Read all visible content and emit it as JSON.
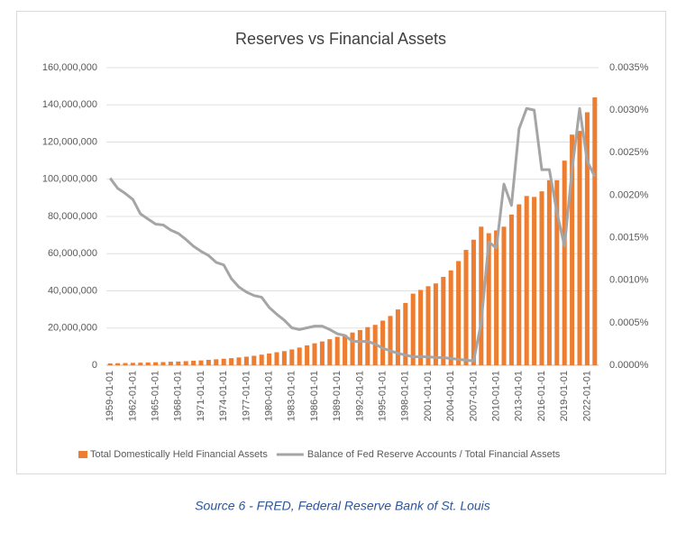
{
  "chart_data": {
    "type": "bar_line",
    "title": "Reserves vs Financial Assets",
    "caption": "Source 6 - FRED, Federal Reserve Bank of St. Louis",
    "categories": [
      "1959-01-01",
      null,
      null,
      "1962-01-01",
      null,
      null,
      "1965-01-01",
      null,
      null,
      "1968-01-01",
      null,
      null,
      "1971-01-01",
      null,
      null,
      "1974-01-01",
      null,
      null,
      "1977-01-01",
      null,
      null,
      "1980-01-01",
      null,
      null,
      "1983-01-01",
      null,
      null,
      "1986-01-01",
      null,
      null,
      "1989-01-01",
      null,
      null,
      "1992-01-01",
      null,
      null,
      "1995-01-01",
      null,
      null,
      "1998-01-01",
      null,
      null,
      "2001-01-01",
      null,
      null,
      "2004-01-01",
      null,
      null,
      "2007-01-01",
      null,
      null,
      "2010-01-01",
      null,
      null,
      "2013-01-01",
      null,
      null,
      "2016-01-01",
      null,
      null,
      "2019-01-01",
      null,
      null,
      "2022-01-01",
      null
    ],
    "series": [
      {
        "name": "Total Domestically Held Financial Assets",
        "color": "#ed7d31",
        "kind": "bar",
        "values": [
          1000000,
          1100000,
          1200000,
          1300000,
          1400000,
          1500000,
          1600000,
          1700000,
          1900000,
          2000000,
          2200000,
          2400000,
          2600000,
          2900000,
          3200000,
          3500000,
          3800000,
          4200000,
          4600000,
          5100000,
          5700000,
          6300000,
          7000000,
          7600000,
          8500000,
          9500000,
          10700000,
          11800000,
          12800000,
          14000000,
          15300000,
          16300000,
          17600000,
          18900000,
          20500000,
          21700000,
          24000000,
          26500000,
          30000000,
          33500000,
          38500000,
          40500000,
          42500000,
          44000000,
          47500000,
          51000000,
          56000000,
          62000000,
          67500000,
          74500000,
          71000000,
          72500000,
          74500000,
          81000000,
          86500000,
          91000000,
          90500000,
          93500000,
          99500000,
          99500000,
          110000000,
          124000000,
          126000000,
          136000000,
          144000000
        ]
      },
      {
        "name": "Balance of Fed Reserve Accounts / Total Financial Assets",
        "color": "#a5a5a5",
        "kind": "line",
        "axis": "y2",
        "values": [
          0.0022,
          0.00208,
          0.00202,
          0.00195,
          0.00178,
          0.00172,
          0.00166,
          0.00165,
          0.00159,
          0.00155,
          0.00148,
          0.0014,
          0.00134,
          0.00129,
          0.00121,
          0.00118,
          0.00102,
          0.00092,
          0.00086,
          0.00082,
          0.0008,
          0.00068,
          0.0006,
          0.00053,
          0.00044,
          0.00042,
          0.00044,
          0.00046,
          0.00046,
          0.00042,
          0.00037,
          0.00035,
          0.00028,
          0.00028,
          0.00028,
          0.00025,
          0.0002,
          0.00017,
          0.00014,
          0.00012,
          0.0001,
          0.0001,
          0.0001,
          9e-05,
          9e-05,
          8e-05,
          7e-05,
          6e-05,
          5e-05,
          0.0005,
          0.00145,
          0.00138,
          0.00213,
          0.00188,
          0.00278,
          0.00302,
          0.003,
          0.0023,
          0.0023,
          0.0018,
          0.0014,
          0.0023,
          0.00302,
          0.0024,
          0.00222
        ]
      }
    ],
    "ylim": [
      0,
      160000000
    ],
    "yticks": [
      0,
      {
        "value": 20000000,
        "label": "20,000,000"
      },
      {
        "value": 40000000,
        "label": "40,000,000"
      },
      {
        "value": 60000000,
        "label": "60,000,000"
      },
      {
        "value": 80000000,
        "label": "80,000,000"
      },
      {
        "value": 100000000,
        "label": "100,000,000"
      },
      {
        "value": 120000000,
        "label": "120,000,000"
      },
      {
        "value": 140000000,
        "label": "140,000,000"
      },
      {
        "value": 160000000,
        "label": "160,000,000"
      }
    ],
    "y2lim": [
      0,
      0.0035
    ],
    "y2ticks": [
      {
        "value": 0,
        "label": "0.0000%"
      },
      {
        "value": 0.0005,
        "label": "0.0005%"
      },
      {
        "value": 0.001,
        "label": "0.0010%"
      },
      {
        "value": 0.0015,
        "label": "0.0015%"
      },
      {
        "value": 0.002,
        "label": "0.0020%"
      },
      {
        "value": 0.0025,
        "label": "0.0025%"
      },
      {
        "value": 0.003,
        "label": "0.0030%"
      },
      {
        "value": 0.0035,
        "label": "0.0035%"
      }
    ],
    "legend": "bottom"
  }
}
